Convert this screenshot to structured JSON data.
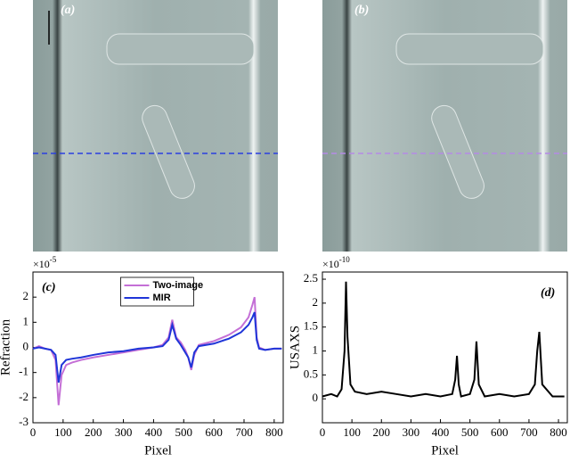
{
  "panels": [
    {
      "label": "(a)"
    },
    {
      "label": "(b)"
    }
  ],
  "chart_data": [
    {
      "type": "line",
      "panel_label": "(c)",
      "xlabel": "Pixel",
      "ylabel": "Refraction",
      "y_multiplier": "×10",
      "y_exponent": "-5",
      "xlim": [
        0,
        830
      ],
      "xticks": [
        0,
        100,
        200,
        300,
        400,
        500,
        600,
        700,
        800
      ],
      "ylim": [
        -3,
        3
      ],
      "yticks": [
        -3,
        -2,
        -1,
        0,
        1,
        2
      ],
      "legend": "top",
      "x": [
        0,
        20,
        40,
        60,
        75,
        85,
        95,
        110,
        130,
        160,
        200,
        250,
        300,
        350,
        400,
        430,
        450,
        462,
        475,
        490,
        505,
        515,
        525,
        535,
        550,
        600,
        650,
        690,
        715,
        728,
        735,
        742,
        750,
        770,
        800,
        825
      ],
      "series": [
        {
          "name": "Two-image",
          "color": "#c46fd6",
          "values": [
            -0.05,
            0.05,
            -0.05,
            -0.1,
            -0.5,
            -2.3,
            -1.1,
            -0.7,
            -0.6,
            -0.5,
            -0.4,
            -0.3,
            -0.2,
            -0.1,
            0,
            0.1,
            0.4,
            1.1,
            0.4,
            0.2,
            -0.1,
            -0.4,
            -0.9,
            -0.3,
            0.1,
            0.25,
            0.5,
            0.8,
            1.2,
            1.7,
            2.0,
            0.4,
            0,
            -0.1,
            -0.05,
            -0.05
          ]
        },
        {
          "name": "MIR",
          "color": "#1f35d8",
          "values": [
            -0.05,
            0,
            -0.05,
            -0.1,
            -0.3,
            -1.4,
            -0.7,
            -0.5,
            -0.45,
            -0.4,
            -0.3,
            -0.2,
            -0.15,
            -0.05,
            0,
            0.05,
            0.3,
            0.9,
            0.35,
            0.1,
            -0.2,
            -0.4,
            -0.8,
            -0.2,
            0.05,
            0.15,
            0.35,
            0.6,
            0.9,
            1.2,
            1.4,
            0.3,
            -0.05,
            -0.1,
            -0.05,
            -0.05
          ]
        }
      ]
    },
    {
      "type": "line",
      "panel_label": "(d)",
      "xlabel": "Pixel",
      "ylabel": "USAXS",
      "y_multiplier": "×10",
      "y_exponent": "-10",
      "xlim": [
        0,
        830
      ],
      "xticks": [
        0,
        100,
        200,
        300,
        400,
        500,
        600,
        700,
        800
      ],
      "ylim": [
        -0.5,
        2.65
      ],
      "yticks": [
        0,
        0.5,
        1,
        1.5,
        2,
        2.5
      ],
      "x": [
        0,
        30,
        50,
        65,
        75,
        80,
        85,
        95,
        110,
        150,
        200,
        250,
        300,
        350,
        400,
        440,
        450,
        456,
        462,
        470,
        500,
        515,
        522,
        530,
        550,
        600,
        650,
        700,
        720,
        728,
        735,
        745,
        780,
        820
      ],
      "series": [
        {
          "name": "USAXS",
          "color": "#000000",
          "values": [
            0.05,
            0.1,
            0.05,
            0.2,
            1.0,
            2.45,
            1.3,
            0.3,
            0.15,
            0.1,
            0.15,
            0.1,
            0.05,
            0.1,
            0.05,
            0.1,
            0.4,
            0.9,
            0.3,
            0.05,
            0.1,
            0.4,
            1.2,
            0.3,
            0.05,
            0.1,
            0.05,
            0.1,
            0.3,
            1.0,
            1.4,
            0.3,
            0.05,
            0.05
          ]
        }
      ]
    }
  ]
}
